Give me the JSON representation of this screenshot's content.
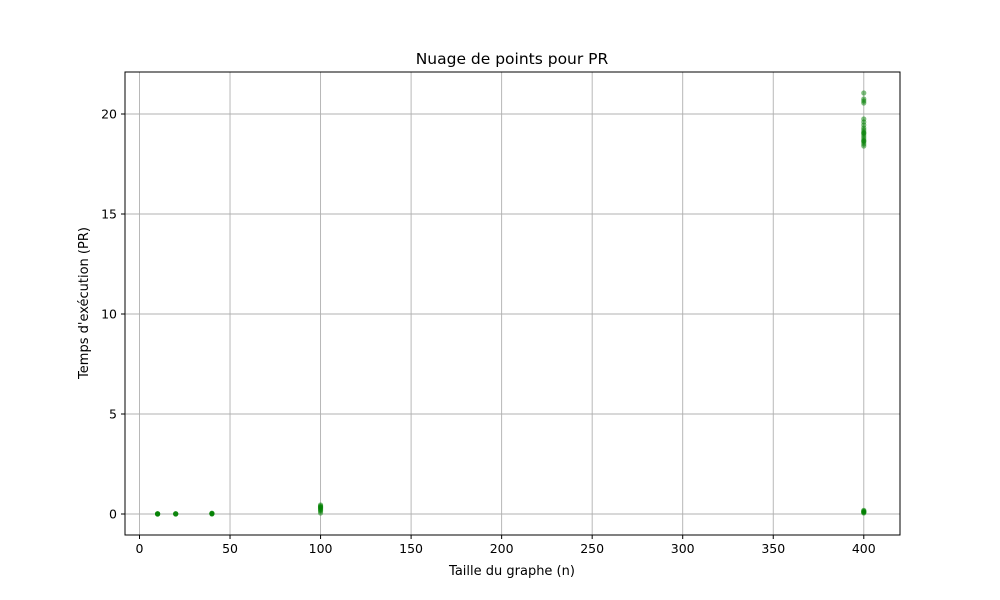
{
  "chart_data": {
    "type": "scatter",
    "title": "Nuage de points pour PR",
    "xlabel": "Taille du graphe (n)",
    "ylabel": "Temps d'exécution (PR)",
    "xlim": [
      -8,
      420
    ],
    "ylim": [
      -1.05,
      22.1
    ],
    "xticks": [
      0,
      50,
      100,
      150,
      200,
      250,
      300,
      350,
      400
    ],
    "yticks": [
      0,
      5,
      10,
      15,
      20
    ],
    "grid": true,
    "marker_color": "#008000",
    "marker_alpha": 0.5,
    "series": [
      {
        "points": [
          [
            10,
            0.0
          ],
          [
            10,
            0.01
          ],
          [
            10,
            0.0
          ],
          [
            10,
            0.02
          ],
          [
            10,
            0.0
          ],
          [
            20,
            0.0
          ],
          [
            20,
            0.01
          ],
          [
            20,
            0.02
          ],
          [
            20,
            0.0
          ],
          [
            40,
            0.0
          ],
          [
            40,
            0.02
          ],
          [
            40,
            0.04
          ],
          [
            40,
            0.03
          ],
          [
            40,
            0.01
          ],
          [
            100,
            0.05
          ],
          [
            100,
            0.15
          ],
          [
            100,
            0.2
          ],
          [
            100,
            0.25
          ],
          [
            100,
            0.3
          ],
          [
            100,
            0.33
          ],
          [
            100,
            0.36
          ],
          [
            100,
            0.4
          ],
          [
            100,
            0.45
          ],
          [
            400,
            0.05
          ],
          [
            400,
            0.08
          ],
          [
            400,
            0.1
          ],
          [
            400,
            0.12
          ],
          [
            400,
            0.15
          ],
          [
            400,
            0.18
          ],
          [
            400,
            18.4
          ],
          [
            400,
            18.5
          ],
          [
            400,
            18.6
          ],
          [
            400,
            18.65
          ],
          [
            400,
            18.7
          ],
          [
            400,
            18.8
          ],
          [
            400,
            18.9
          ],
          [
            400,
            19.0
          ],
          [
            400,
            19.05
          ],
          [
            400,
            19.1
          ],
          [
            400,
            19.2
          ],
          [
            400,
            19.3
          ],
          [
            400,
            19.45
          ],
          [
            400,
            19.6
          ],
          [
            400,
            19.75
          ],
          [
            400,
            20.55
          ],
          [
            400,
            20.65
          ],
          [
            400,
            20.75
          ],
          [
            400,
            21.05
          ]
        ]
      }
    ]
  }
}
